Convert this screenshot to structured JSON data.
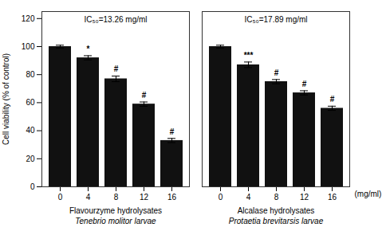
{
  "chart_data": {
    "type": "bar",
    "ylabel": "Cell viability (% of control)",
    "xlabel": "(mg/ml)",
    "ylim": [
      0,
      125
    ],
    "yticks": [
      0,
      20,
      40,
      60,
      80,
      100,
      120
    ],
    "color": "#111111",
    "groups": [
      {
        "name": "Flavourzyme hydrolysates",
        "subtitle": "Tenebrio molitor larvae",
        "annotation": "IC₅₀=13.26 mg/ml",
        "categories": [
          "0",
          "4",
          "8",
          "12",
          "16"
        ],
        "values": [
          100,
          92,
          77,
          59,
          33
        ],
        "errors": [
          1.0,
          1.5,
          2.0,
          1.5,
          1.5
        ],
        "labels": [
          null,
          "*",
          "#",
          "#",
          "#"
        ]
      },
      {
        "name": "Alcalase hydrolysates",
        "subtitle": "Protaetia brevitarsis larvae",
        "annotation": "IC₅₀=17.89 mg/ml",
        "categories": [
          "0",
          "4",
          "8",
          "12",
          "16"
        ],
        "values": [
          100,
          87,
          75,
          67,
          56
        ],
        "errors": [
          1.0,
          2.0,
          1.5,
          1.5,
          1.5
        ],
        "labels": [
          null,
          "***",
          "#",
          "#",
          "#"
        ]
      }
    ]
  }
}
